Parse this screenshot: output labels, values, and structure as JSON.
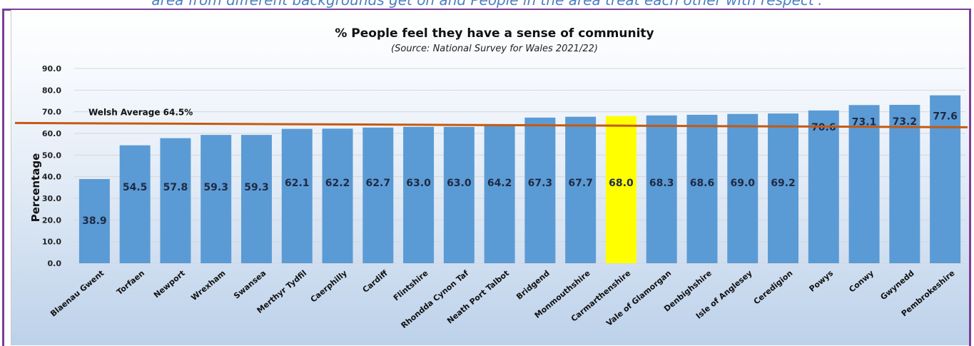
{
  "header": {
    "caption": "area from different backgrounds get on and People in the area treat each other with respect'."
  },
  "colors": {
    "bar": "#5b9bd5",
    "highlight": "#ffff00",
    "average_line": "#c55a11",
    "frame": "#7b3f98"
  },
  "chart_data": {
    "type": "bar",
    "title": "% People feel they have a sense of community",
    "subtitle": "(Source: National Survey for Wales 2021/22)",
    "xlabel": "",
    "ylabel": "Percentage",
    "ylim": [
      0,
      90
    ],
    "yticks": [
      "0.0",
      "10.0",
      "20.0",
      "30.0",
      "40.0",
      "50.0",
      "60.0",
      "70.0",
      "80.0",
      "90.0"
    ],
    "grid": true,
    "categories": [
      "Blaenau Gwent",
      "Torfaen",
      "Newport",
      "Wrexham",
      "Swansea",
      "Merthyr Tydfil",
      "Caerphilly",
      "Cardiff",
      "Flintshire",
      "Rhondda Cynon Taf",
      "Neath Port Talbot",
      "Bridgend",
      "Monmouthshire",
      "Carmarthenshire",
      "Vale of Glamorgan",
      "Denbighshire",
      "Isle of Anglesey",
      "Ceredigion",
      "Powys",
      "Conwy",
      "Gwynedd",
      "Pembrokeshire"
    ],
    "values": [
      38.9,
      54.5,
      57.8,
      59.3,
      59.3,
      62.1,
      62.2,
      62.7,
      63.0,
      63.0,
      64.2,
      67.3,
      67.7,
      68.0,
      68.3,
      68.6,
      69.0,
      69.2,
      70.6,
      73.1,
      73.2,
      77.6
    ],
    "value_labels": [
      "38.9",
      "54.5",
      "57.8",
      "59.3",
      "59.3",
      "62.1",
      "62.2",
      "62.7",
      "63.0",
      "63.0",
      "64.2",
      "67.3",
      "67.7",
      "68.0",
      "68.3",
      "68.6",
      "69.0",
      "69.2",
      "70.6",
      "73.1",
      "73.2",
      "77.6"
    ],
    "highlight_category": "Carmarthenshire",
    "average": {
      "label": "Welsh Average 64.5%",
      "value": 64.5
    }
  }
}
